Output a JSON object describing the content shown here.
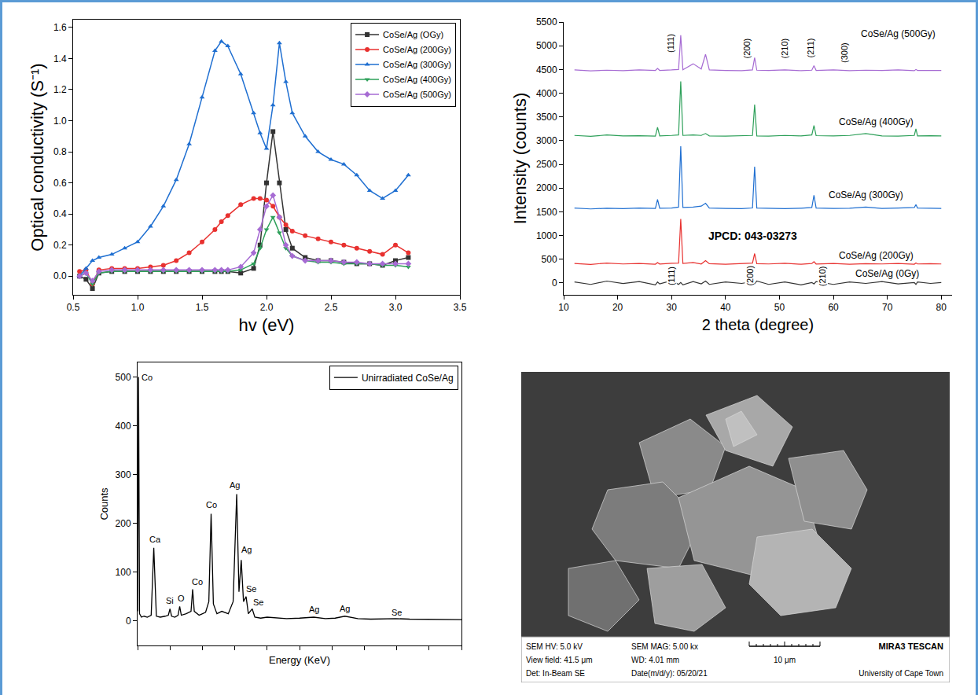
{
  "chart_data": [
    {
      "type": "line",
      "x_label": "hv (eV)",
      "y_label": "Optical conductivity (S⁻¹)",
      "x": [
        0.55,
        0.6,
        0.65,
        0.7,
        0.8,
        0.9,
        1.0,
        1.1,
        1.2,
        1.3,
        1.4,
        1.5,
        1.6,
        1.65,
        1.7,
        1.8,
        1.9,
        1.95,
        2.0,
        2.05,
        2.1,
        2.15,
        2.2,
        2.3,
        2.4,
        2.5,
        2.6,
        2.7,
        2.8,
        2.9,
        3.0,
        3.1
      ],
      "series": [
        {
          "name": "CoSe/Ag (OGy)",
          "color": "#333333",
          "marker": "square",
          "line_style": "solid",
          "values": [
            0.0,
            -0.02,
            -0.08,
            0.02,
            0.03,
            0.03,
            0.03,
            0.03,
            0.03,
            0.03,
            0.03,
            0.03,
            0.03,
            0.03,
            0.03,
            0.02,
            0.05,
            0.2,
            0.6,
            0.93,
            0.6,
            0.3,
            0.18,
            0.12,
            0.1,
            0.1,
            0.09,
            0.08,
            0.08,
            0.07,
            0.1,
            0.12
          ]
        },
        {
          "name": "CoSe/Ag (200Gy)",
          "color": "#e8312f",
          "marker": "circle",
          "line_style": "solid",
          "values": [
            0.03,
            0.04,
            -0.05,
            0.04,
            0.05,
            0.05,
            0.05,
            0.06,
            0.07,
            0.1,
            0.15,
            0.22,
            0.3,
            0.35,
            0.39,
            0.46,
            0.5,
            0.5,
            0.49,
            0.45,
            0.38,
            0.33,
            0.29,
            0.26,
            0.24,
            0.22,
            0.2,
            0.18,
            0.16,
            0.14,
            0.2,
            0.15
          ]
        },
        {
          "name": "CoSe/Ag (300Gy)",
          "color": "#1f6fd1",
          "marker": "triangle-up",
          "line_style": "solid",
          "values": [
            0.0,
            0.05,
            0.1,
            0.12,
            0.14,
            0.18,
            0.22,
            0.32,
            0.45,
            0.62,
            0.85,
            1.15,
            1.45,
            1.51,
            1.48,
            1.3,
            1.05,
            0.92,
            0.82,
            1.1,
            1.5,
            1.25,
            1.05,
            0.9,
            0.8,
            0.75,
            0.72,
            0.65,
            0.55,
            0.5,
            0.55,
            0.65
          ]
        },
        {
          "name": "CoSe/Ag (400Gy)",
          "color": "#2ea05a",
          "marker": "triangle-down",
          "line_style": "solid",
          "values": [
            0.0,
            0.02,
            -0.05,
            0.02,
            0.03,
            0.03,
            0.03,
            0.03,
            0.03,
            0.03,
            0.03,
            0.03,
            0.03,
            0.03,
            0.03,
            0.04,
            0.08,
            0.18,
            0.3,
            0.38,
            0.28,
            0.18,
            0.13,
            0.1,
            0.09,
            0.09,
            0.08,
            0.08,
            0.08,
            0.07,
            0.07,
            0.06
          ]
        },
        {
          "name": "CoSe/Ag (500Gy)",
          "color": "#a66bd3",
          "marker": "diamond",
          "line_style": "solid",
          "values": [
            0.0,
            0.02,
            -0.03,
            0.03,
            0.04,
            0.04,
            0.04,
            0.04,
            0.04,
            0.04,
            0.04,
            0.04,
            0.04,
            0.04,
            0.04,
            0.06,
            0.15,
            0.3,
            0.45,
            0.52,
            0.38,
            0.2,
            0.13,
            0.1,
            0.1,
            0.1,
            0.09,
            0.09,
            0.08,
            0.08,
            0.08,
            0.08
          ]
        }
      ],
      "xlim": [
        0.5,
        3.5
      ],
      "xticks": [
        0.5,
        {
          "value": 1,
          "label": "1.0"
        },
        1.5,
        {
          "value": 2,
          "label": "2.0"
        },
        2.5,
        {
          "value": 3,
          "label": "3.0"
        },
        3.5
      ],
      "ylim": [
        -0.12,
        1.65
      ],
      "yticks": [
        {
          "value": 0,
          "label": "0.0"
        },
        0.2,
        0.4,
        0.6,
        0.8,
        {
          "value": 1,
          "label": "1.0"
        },
        1.2,
        1.4,
        1.6
      ],
      "grid": false,
      "legend": "upper right"
    },
    {
      "type": "line",
      "x_label": "2 theta (degree)",
      "y_label": "Intensity (counts)",
      "x": [
        12,
        15,
        18,
        21,
        24,
        27,
        27.4,
        27.8,
        30,
        31.3,
        31.7,
        32.1,
        34,
        35.5,
        36.3,
        37,
        40,
        43,
        45,
        45.4,
        45.8,
        48,
        51,
        54,
        56,
        56.4,
        56.8,
        60,
        63,
        66,
        69,
        72,
        75,
        75.3,
        75.6,
        78,
        80
      ],
      "series": [
        {
          "name": "CoSe/Ag (0Gy)",
          "color": "#333333",
          "line_style": "solid",
          "label_position": [
            70,
            200
          ],
          "values": [
            20,
            -30,
            40,
            -10,
            30,
            -40,
            20,
            -20,
            50,
            -30,
            10,
            -40,
            30,
            -20,
            40,
            -30,
            20,
            -10,
            30,
            -20,
            40,
            -30,
            20,
            -40,
            10,
            -20,
            30,
            -30,
            20,
            -10,
            30,
            -20,
            10,
            -30,
            20,
            -10,
            10
          ]
        },
        {
          "name": "CoSe/Ag (200Gy)",
          "color": "#e8312f",
          "line_style": "solid",
          "label_position": [
            68,
            580
          ],
          "values": [
            410,
            390,
            420,
            400,
            410,
            395,
            430,
            400,
            415,
            420,
            1350,
            410,
            430,
            400,
            470,
            405,
            395,
            410,
            420,
            620,
            405,
            400,
            415,
            395,
            410,
            450,
            400,
            410,
            395,
            405,
            400,
            410,
            395,
            420,
            400,
            405,
            400
          ]
        },
        {
          "name": "CoSe/Ag (300Gy)",
          "color": "#1f6fd1",
          "line_style": "solid",
          "label_position": [
            66,
            1850
          ],
          "values": [
            1580,
            1560,
            1575,
            1565,
            1580,
            1570,
            1760,
            1575,
            1580,
            1600,
            2880,
            1590,
            1600,
            1620,
            1680,
            1580,
            1570,
            1565,
            1580,
            2450,
            1580,
            1570,
            1565,
            1575,
            1590,
            1850,
            1580,
            1570,
            1575,
            1600,
            1570,
            1580,
            1590,
            1650,
            1580,
            1575,
            1570
          ]
        },
        {
          "name": "CoSe/Ag (400Gy)",
          "color": "#2ea05a",
          "line_style": "solid",
          "label_position": [
            68,
            3400
          ],
          "values": [
            3110,
            3090,
            3120,
            3100,
            3105,
            3095,
            3280,
            3100,
            3110,
            3120,
            4250,
            3110,
            3120,
            3110,
            3150,
            3100,
            3095,
            3105,
            3110,
            3760,
            3100,
            3095,
            3110,
            3100,
            3120,
            3320,
            3105,
            3100,
            3110,
            3150,
            3100,
            3095,
            3110,
            3250,
            3100,
            3105,
            3100
          ]
        },
        {
          "name": "CoSe/Ag (500Gy)",
          "color": "#a66bd3",
          "line_style": "solid",
          "label_position": [
            72,
            5250
          ],
          "values": [
            4490,
            4470,
            4485,
            4475,
            4490,
            4480,
            4520,
            4480,
            4490,
            4500,
            5220,
            4495,
            4620,
            4510,
            4820,
            4490,
            4480,
            4475,
            4490,
            4750,
            4485,
            4480,
            4490,
            4475,
            4485,
            4580,
            4480,
            4490,
            4475,
            4485,
            4480,
            4490,
            4475,
            4500,
            4480,
            4485,
            4480
          ]
        }
      ],
      "peak_labels": [
        {
          "text": "(111)",
          "x": 29.8,
          "y": 5050
        },
        {
          "text": "(200)",
          "x": 44.0,
          "y": 4950
        },
        {
          "text": "(210)",
          "x": 51,
          "y": 4950
        },
        {
          "text": "(211)",
          "x": 55.8,
          "y": 4950
        },
        {
          "text": "(300)",
          "x": 62,
          "y": 4850
        },
        {
          "text": "(111)",
          "x": 30,
          "y": 150
        },
        {
          "text": "(200)",
          "x": 44.5,
          "y": 150
        },
        {
          "text": "(210)",
          "x": 58,
          "y": 150
        }
      ],
      "note": {
        "text": "JPCD: 043-03273",
        "x": 45,
        "y": 1000
      },
      "xlim": [
        10,
        82
      ],
      "xticks": [
        10,
        20,
        30,
        40,
        50,
        60,
        70,
        80
      ],
      "ylim": [
        -250,
        5500
      ],
      "yticks": [
        0,
        500,
        1000,
        1500,
        2000,
        2500,
        3000,
        3500,
        4000,
        4500,
        5000,
        5500
      ],
      "grid": false
    },
    {
      "type": "line",
      "x_label": "Energy (KeV)",
      "y_label": "Counts",
      "x": [
        0,
        0.03,
        0.06,
        0.12,
        0.2,
        0.3,
        0.42,
        0.5,
        0.58,
        0.7,
        0.85,
        0.95,
        1.0,
        1.05,
        1.15,
        1.25,
        1.3,
        1.35,
        1.5,
        1.65,
        1.7,
        1.75,
        1.9,
        2.0,
        2.1,
        2.2,
        2.27,
        2.34,
        2.45,
        2.6,
        2.8,
        2.95,
        3.06,
        3.13,
        3.2,
        3.27,
        3.35,
        3.42,
        3.54,
        3.62,
        3.8,
        4.0,
        4.3,
        4.6,
        5.0,
        5.44,
        5.8,
        6.1,
        6.4,
        6.8,
        7.2,
        7.6,
        7.97,
        8.4,
        8.8,
        9.2,
        9.6,
        10.0
      ],
      "series": [
        {
          "name": "Unirradiated CoSe/Ag",
          "color": "#000000",
          "line_style": "solid",
          "values": [
            20,
            500,
            15,
            8,
            10,
            8,
            12,
            150,
            10,
            8,
            10,
            12,
            25,
            10,
            8,
            12,
            30,
            12,
            15,
            20,
            65,
            20,
            12,
            15,
            18,
            40,
            220,
            35,
            15,
            20,
            15,
            40,
            260,
            60,
            125,
            40,
            50,
            15,
            25,
            8,
            6,
            8,
            6,
            5,
            6,
            8,
            5,
            6,
            10,
            5,
            4,
            5,
            5,
            4,
            4,
            4,
            3,
            3
          ]
        }
      ],
      "annotations": [
        {
          "text": "Co",
          "x": 0.3,
          "y": 500
        },
        {
          "text": "Ca",
          "x": 0.55,
          "y": 168
        },
        {
          "text": "Si",
          "x": 1.0,
          "y": 42
        },
        {
          "text": "O",
          "x": 1.35,
          "y": 46
        },
        {
          "text": "Co",
          "x": 1.85,
          "y": 80
        },
        {
          "text": "Co",
          "x": 2.27,
          "y": 238
        },
        {
          "text": "Ag",
          "x": 3.0,
          "y": 278
        },
        {
          "text": "Ag",
          "x": 3.35,
          "y": 147
        },
        {
          "text": "Se",
          "x": 3.5,
          "y": 66
        },
        {
          "text": "Se",
          "x": 3.72,
          "y": 38
        },
        {
          "text": "Ag",
          "x": 5.44,
          "y": 24
        },
        {
          "text": "Ag",
          "x": 6.4,
          "y": 26
        },
        {
          "text": "Se",
          "x": 8.0,
          "y": 18
        }
      ],
      "xlim": [
        0,
        10
      ],
      "xticks": [
        0,
        1,
        2,
        3,
        4,
        5,
        6,
        7,
        8,
        9,
        10
      ],
      "ylim": [
        -50,
        530
      ],
      "yticks": [
        0,
        100,
        200,
        300,
        400,
        500
      ],
      "tick_labels": "y",
      "grid": false,
      "legend": "upper right"
    }
  ],
  "micrograph": {
    "rows": [
      [
        "SEM HV: 5.0 kV",
        "SEM MAG: 5.00 kx"
      ],
      [
        "View field: 41.5 μm",
        "WD: 4.01 mm"
      ],
      [
        "Det: In-Beam SE",
        "Date(m/d/y): 05/20/21"
      ]
    ],
    "scale_bar": "10 μm",
    "brand": "MIRA3 TESCAN",
    "institution": "University of Cape Town"
  }
}
